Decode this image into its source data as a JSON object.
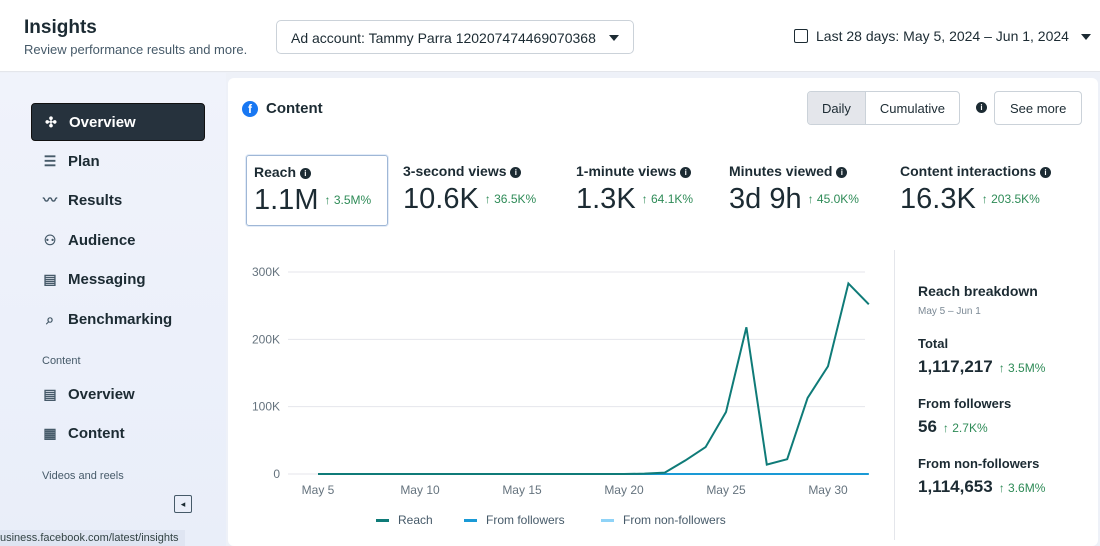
{
  "header": {
    "title": "Insights",
    "subtitle": "Review performance results and more.",
    "ad_account": "Ad account: Tammy Parra 120207474469070368",
    "date_range": "Last 28 days: May 5, 2024 – Jun 1, 2024"
  },
  "sidebar": {
    "items": [
      {
        "label": "Overview",
        "icon": "network-icon"
      },
      {
        "label": "Plan",
        "icon": "numbered-list-icon"
      },
      {
        "label": "Results",
        "icon": "trend-line-icon"
      },
      {
        "label": "Audience",
        "icon": "people-icon"
      },
      {
        "label": "Messaging",
        "icon": "messages-icon"
      },
      {
        "label": "Benchmarking",
        "icon": "benchmark-search-icon"
      }
    ],
    "section_content": "Content",
    "content_items": [
      {
        "label": "Overview",
        "icon": "cards-icon"
      },
      {
        "label": "Content",
        "icon": "table-icon"
      }
    ],
    "section_videos": "Videos and reels"
  },
  "status_url": "usiness.facebook.com/latest/insights",
  "content": {
    "title": "Content",
    "toggle": [
      "Daily",
      "Cumulative"
    ],
    "see_more": "See more",
    "metrics": [
      {
        "label": "Reach",
        "value": "1.1M",
        "change": "↑ 3.5M%"
      },
      {
        "label": "3-second views",
        "value": "10.6K",
        "change": "↑ 36.5K%"
      },
      {
        "label": "1-minute views",
        "value": "1.3K",
        "change": "↑ 64.1K%"
      },
      {
        "label": "Minutes viewed",
        "value": "3d 9h",
        "change": "↑ 45.0K%"
      },
      {
        "label": "Content interactions",
        "value": "16.3K",
        "change": "↑ 203.5K%"
      }
    ]
  },
  "breakdown": {
    "title": "Reach breakdown",
    "period": "May 5 – Jun 1",
    "rows": [
      {
        "label": "Total",
        "value": "1,117,217",
        "change": "↑ 3.5M%"
      },
      {
        "label": "From followers",
        "value": "56",
        "change": "↑ 2.7K%"
      },
      {
        "label": "From non-followers",
        "value": "1,114,653",
        "change": "↑ 3.6M%"
      }
    ]
  },
  "chart_data": {
    "type": "line",
    "ylim": [
      0,
      300000
    ],
    "yticks": [
      "0",
      "100K",
      "200K",
      "300K"
    ],
    "xticks": [
      {
        "day": 0,
        "label": "May 5"
      },
      {
        "day": 5,
        "label": "May 10"
      },
      {
        "day": 10,
        "label": "May 15"
      },
      {
        "day": 15,
        "label": "May 20"
      },
      {
        "day": 20,
        "label": "May 25"
      },
      {
        "day": 25,
        "label": "May 30"
      }
    ],
    "colors": {
      "Reach": "#0f7b78",
      "From followers": "#1a9ad6",
      "From non-followers": "#8fd3f7"
    },
    "series": [
      {
        "name": "Reach",
        "values": [
          0,
          0,
          0,
          0,
          0,
          0,
          0,
          0,
          0,
          0,
          0,
          0,
          0,
          0,
          0,
          0,
          500,
          2000,
          20000,
          40000,
          92000,
          218000,
          14000,
          22000,
          113000,
          160000,
          283000,
          252000
        ]
      },
      {
        "name": "From followers",
        "values": [
          0,
          0,
          0,
          0,
          0,
          0,
          0,
          0,
          0,
          0,
          0,
          0,
          0,
          0,
          0,
          0,
          0,
          0,
          0,
          0,
          0,
          0,
          0,
          0,
          0,
          0,
          0,
          0
        ]
      },
      {
        "name": "From non-followers",
        "values": [
          0,
          0,
          0,
          0,
          0,
          0,
          0,
          0,
          0,
          0,
          0,
          0,
          0,
          0,
          0,
          0,
          0,
          0,
          0,
          0,
          0,
          0,
          0,
          0,
          0,
          0,
          0,
          0
        ]
      }
    ]
  }
}
